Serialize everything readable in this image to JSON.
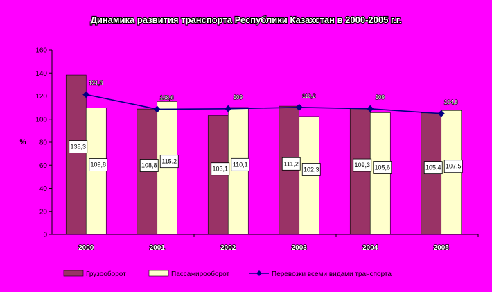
{
  "chart_data": {
    "type": "bar",
    "title": "Динамика развития транспорта Республики Казахстан в 2000-2005 г.г.",
    "ylabel": "%",
    "ylim": [
      0,
      160
    ],
    "yticks": [
      0,
      20,
      40,
      60,
      80,
      100,
      120,
      140,
      160
    ],
    "categories": [
      "2000",
      "2001",
      "2002",
      "2003",
      "2004",
      "2005"
    ],
    "series": [
      {
        "name": "Грузооборот",
        "kind": "bar",
        "color": "#993366",
        "values": [
          138.3,
          108.8,
          103.1,
          111.2,
          109.3,
          105.4
        ],
        "labels": [
          "138,3",
          "108,8",
          "103,1",
          "111,2",
          "109,3",
          "105,4"
        ]
      },
      {
        "name": "Пассажирооборот",
        "kind": "bar",
        "color": "#ffffcc",
        "values": [
          109.8,
          115.2,
          110.1,
          102.3,
          105.6,
          107.5
        ],
        "labels": [
          "109,8",
          "115,2",
          "110,1",
          "102,3",
          "105,6",
          "107,5"
        ]
      },
      {
        "name": "Перевозки всеми видами транспорта",
        "kind": "line",
        "color": "#000080",
        "values": [
          121.3,
          108.6,
          109,
          110.2,
          109,
          104.8
        ],
        "labels": [
          "121,3",
          "108,6",
          "109",
          "110,2",
          "109",
          "104,8"
        ]
      }
    ],
    "grid": false,
    "legend": "bottom"
  }
}
